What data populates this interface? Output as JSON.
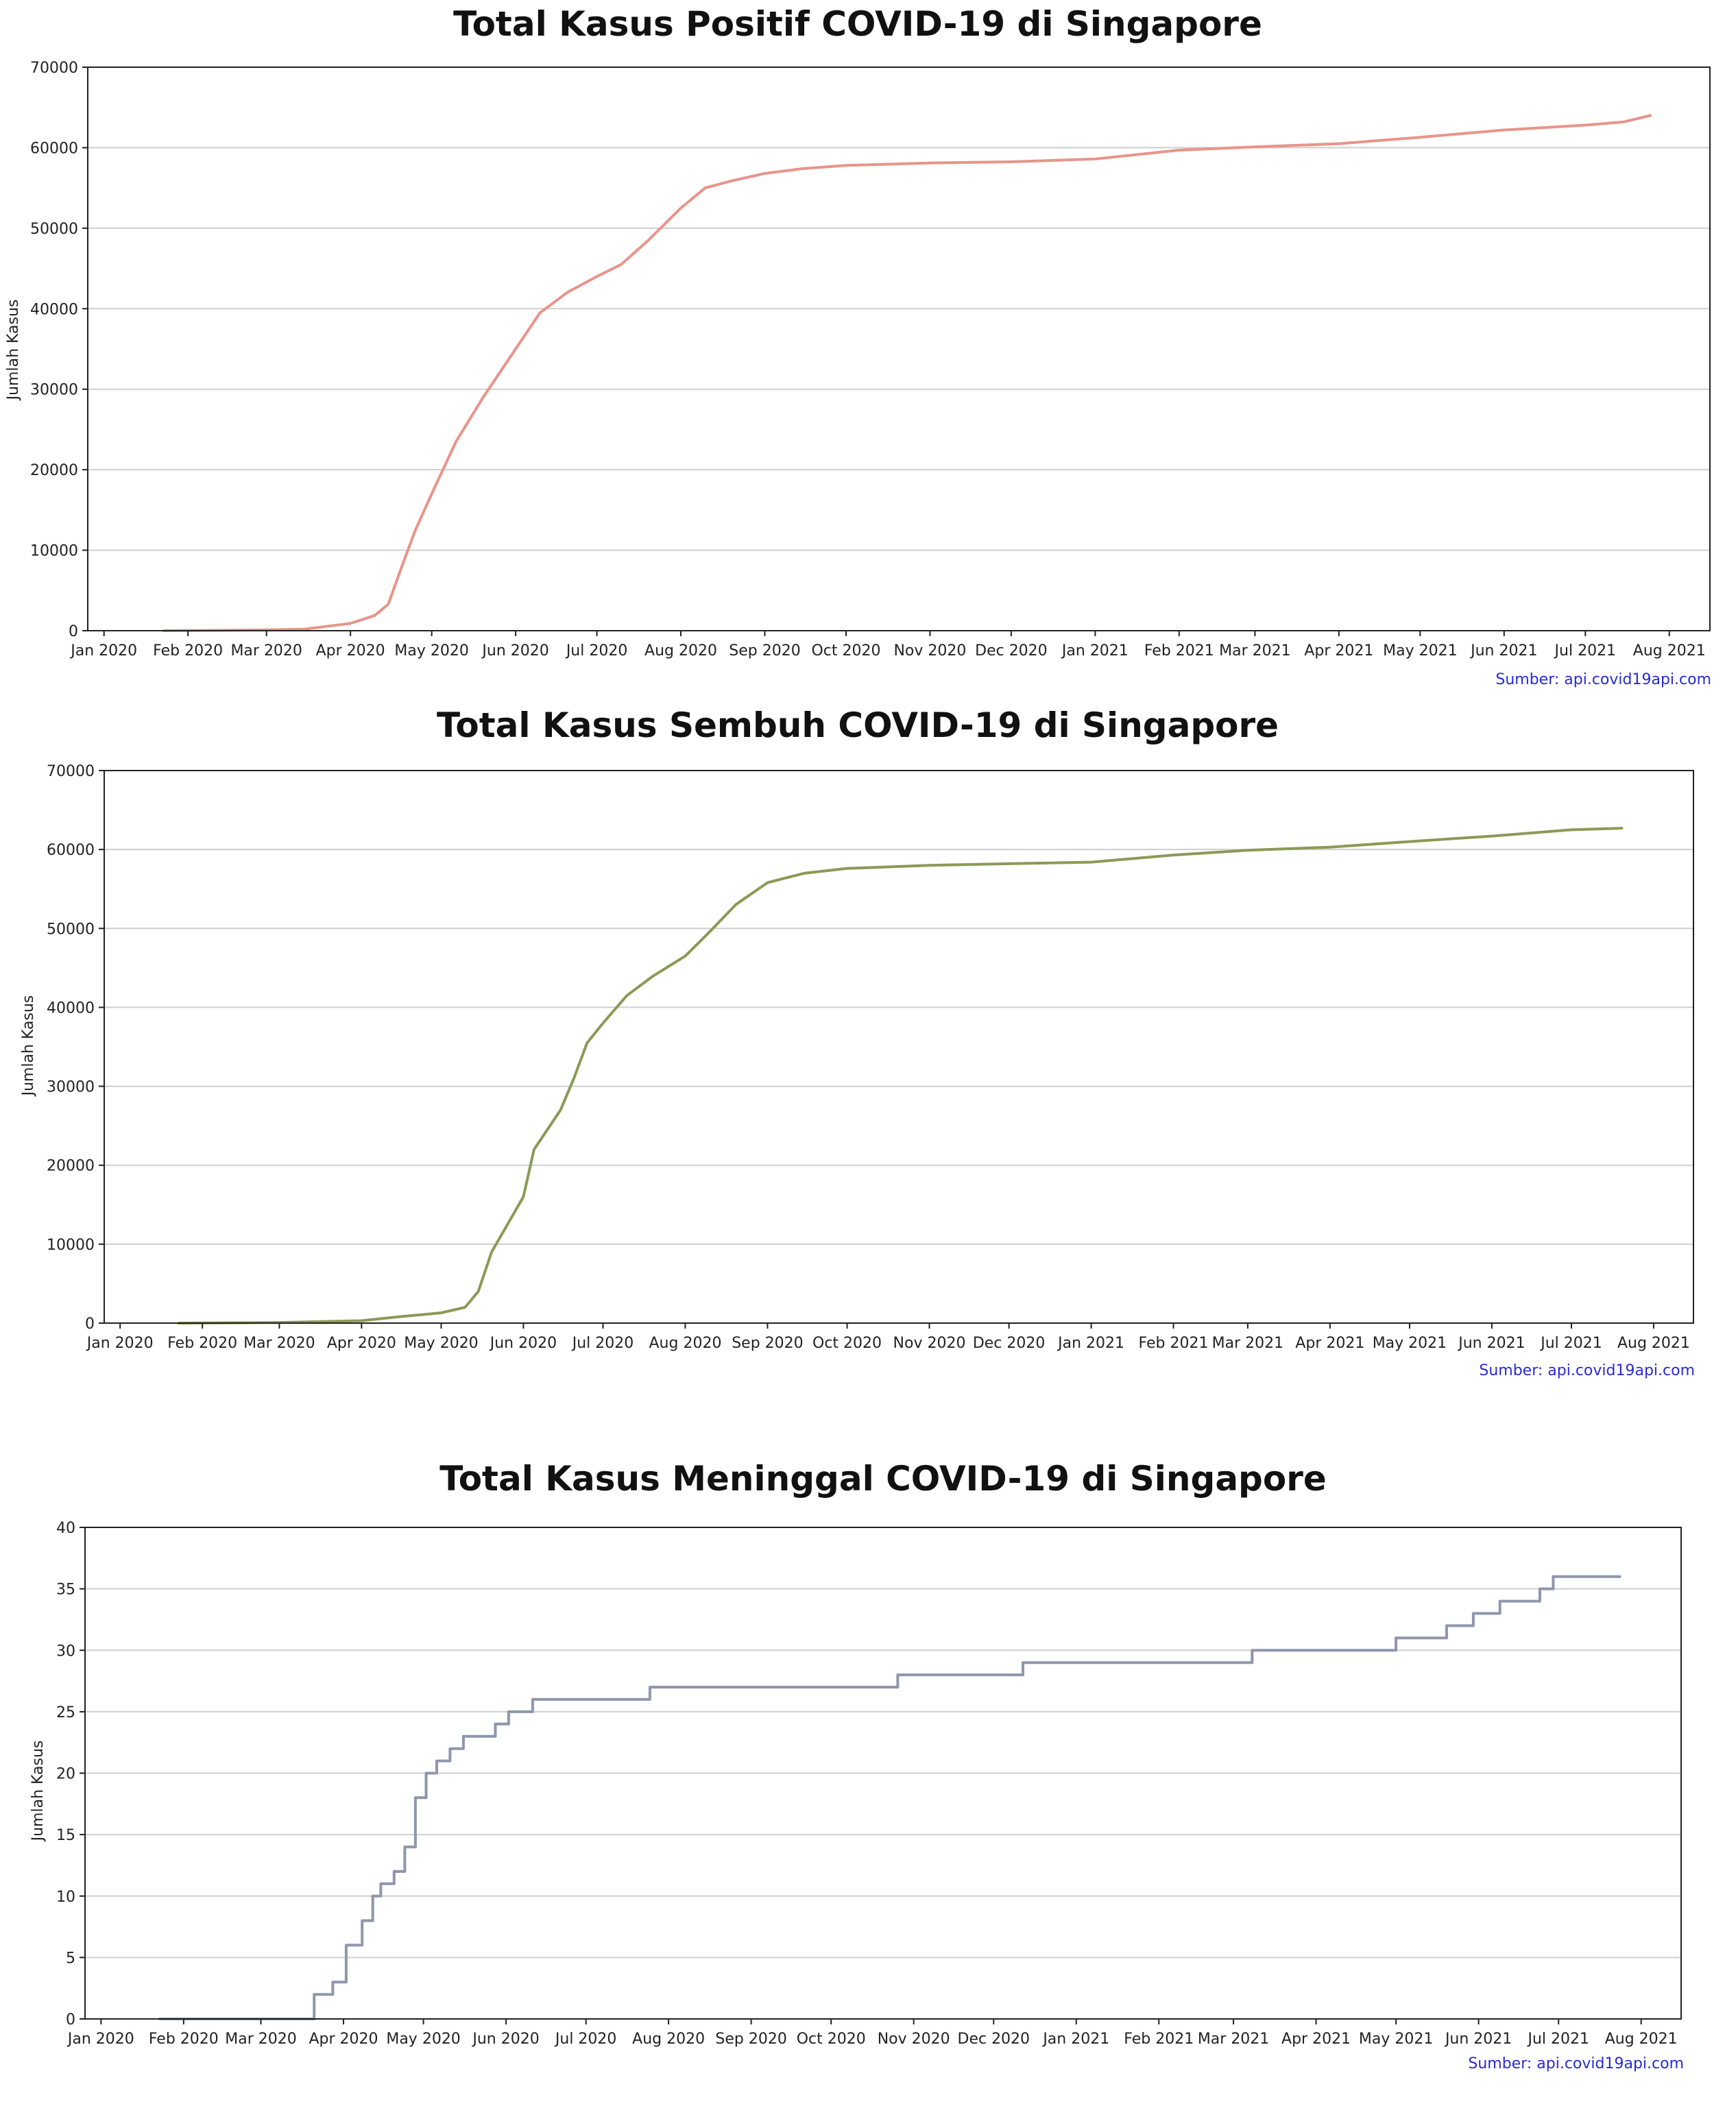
{
  "chart_data": [
    {
      "type": "line",
      "title": "Total Kasus Positif COVID-19 di Singapore",
      "ylabel": "Jumlah Kasus",
      "xlabel": "",
      "source": "Sumber: api.covid19api.com",
      "grid": "horizontal",
      "line_color": "#e8948a",
      "step": false,
      "ylim": [
        0,
        70000
      ],
      "xlim": [
        "2019-12-26",
        "2021-08-16"
      ],
      "yticks": [
        {
          "value": 0,
          "label": "0"
        },
        {
          "value": 10000,
          "label": "10000"
        },
        {
          "value": 20000,
          "label": "20000"
        },
        {
          "value": 30000,
          "label": "30000"
        },
        {
          "value": 40000,
          "label": "40000"
        },
        {
          "value": 50000,
          "label": "50000"
        },
        {
          "value": 60000,
          "label": "60000"
        },
        {
          "value": 70000,
          "label": "70000"
        }
      ],
      "xticks": [
        {
          "value": "2020-01-01",
          "label": "Jan 2020"
        },
        {
          "value": "2020-02-01",
          "label": "Feb 2020"
        },
        {
          "value": "2020-03-01",
          "label": "Mar 2020"
        },
        {
          "value": "2020-04-01",
          "label": "Apr 2020"
        },
        {
          "value": "2020-05-01",
          "label": "May 2020"
        },
        {
          "value": "2020-06-01",
          "label": "Jun 2020"
        },
        {
          "value": "2020-07-01",
          "label": "Jul 2020"
        },
        {
          "value": "2020-08-01",
          "label": "Aug 2020"
        },
        {
          "value": "2020-09-01",
          "label": "Sep 2020"
        },
        {
          "value": "2020-10-01",
          "label": "Oct 2020"
        },
        {
          "value": "2020-11-01",
          "label": "Nov 2020"
        },
        {
          "value": "2020-12-01",
          "label": "Dec 2020"
        },
        {
          "value": "2021-01-01",
          "label": "Jan 2021"
        },
        {
          "value": "2021-02-01",
          "label": "Feb 2021"
        },
        {
          "value": "2021-03-01",
          "label": "Mar 2021"
        },
        {
          "value": "2021-04-01",
          "label": "Apr 2021"
        },
        {
          "value": "2021-05-01",
          "label": "May 2021"
        },
        {
          "value": "2021-06-01",
          "label": "Jun 2021"
        },
        {
          "value": "2021-07-01",
          "label": "Jul 2021"
        },
        {
          "value": "2021-08-01",
          "label": "Aug 2021"
        }
      ],
      "series": [
        {
          "name": "",
          "points": [
            [
              "2020-01-23",
              0
            ],
            [
              "2020-03-01",
              100
            ],
            [
              "2020-03-15",
              200
            ],
            [
              "2020-04-01",
              900
            ],
            [
              "2020-04-10",
              1900
            ],
            [
              "2020-04-15",
              3300
            ],
            [
              "2020-04-20",
              8000
            ],
            [
              "2020-04-25",
              12500
            ],
            [
              "2020-05-01",
              17000
            ],
            [
              "2020-05-10",
              23500
            ],
            [
              "2020-05-20",
              29000
            ],
            [
              "2020-06-01",
              35000
            ],
            [
              "2020-06-10",
              39500
            ],
            [
              "2020-06-20",
              42000
            ],
            [
              "2020-07-01",
              44000
            ],
            [
              "2020-07-10",
              45500
            ],
            [
              "2020-07-20",
              48500
            ],
            [
              "2020-08-01",
              52500
            ],
            [
              "2020-08-10",
              55000
            ],
            [
              "2020-08-20",
              55900
            ],
            [
              "2020-09-01",
              56800
            ],
            [
              "2020-09-15",
              57400
            ],
            [
              "2020-10-01",
              57800
            ],
            [
              "2020-11-01",
              58100
            ],
            [
              "2020-12-01",
              58250
            ],
            [
              "2021-01-01",
              58600
            ],
            [
              "2021-02-01",
              59700
            ],
            [
              "2021-03-01",
              60100
            ],
            [
              "2021-04-01",
              60500
            ],
            [
              "2021-05-01",
              61300
            ],
            [
              "2021-06-01",
              62200
            ],
            [
              "2021-07-01",
              62800
            ],
            [
              "2021-07-15",
              63200
            ],
            [
              "2021-07-25",
              64000
            ]
          ]
        }
      ]
    },
    {
      "type": "line",
      "title": "Total Kasus Sembuh COVID-19 di Singapore",
      "ylabel": "Jumlah Kasus",
      "xlabel": "",
      "source": "Sumber: api.covid19api.com",
      "grid": "horizontal",
      "line_color": "#8a9a55",
      "step": false,
      "ylim": [
        0,
        70000
      ],
      "xlim": [
        "2019-12-26",
        "2021-08-16"
      ],
      "yticks": [
        {
          "value": 0,
          "label": "0"
        },
        {
          "value": 10000,
          "label": "10000"
        },
        {
          "value": 20000,
          "label": "20000"
        },
        {
          "value": 30000,
          "label": "30000"
        },
        {
          "value": 40000,
          "label": "40000"
        },
        {
          "value": 50000,
          "label": "50000"
        },
        {
          "value": 60000,
          "label": "60000"
        },
        {
          "value": 70000,
          "label": "70000"
        }
      ],
      "xticks": [
        {
          "value": "2020-01-01",
          "label": "Jan 2020"
        },
        {
          "value": "2020-02-01",
          "label": "Feb 2020"
        },
        {
          "value": "2020-03-01",
          "label": "Mar 2020"
        },
        {
          "value": "2020-04-01",
          "label": "Apr 2020"
        },
        {
          "value": "2020-05-01",
          "label": "May 2020"
        },
        {
          "value": "2020-06-01",
          "label": "Jun 2020"
        },
        {
          "value": "2020-07-01",
          "label": "Jul 2020"
        },
        {
          "value": "2020-08-01",
          "label": "Aug 2020"
        },
        {
          "value": "2020-09-01",
          "label": "Sep 2020"
        },
        {
          "value": "2020-10-01",
          "label": "Oct 2020"
        },
        {
          "value": "2020-11-01",
          "label": "Nov 2020"
        },
        {
          "value": "2020-12-01",
          "label": "Dec 2020"
        },
        {
          "value": "2021-01-01",
          "label": "Jan 2021"
        },
        {
          "value": "2021-02-01",
          "label": "Feb 2021"
        },
        {
          "value": "2021-03-01",
          "label": "Mar 2021"
        },
        {
          "value": "2021-04-01",
          "label": "Apr 2021"
        },
        {
          "value": "2021-05-01",
          "label": "May 2021"
        },
        {
          "value": "2021-06-01",
          "label": "Jun 2021"
        },
        {
          "value": "2021-07-01",
          "label": "Jul 2021"
        },
        {
          "value": "2021-08-01",
          "label": "Aug 2021"
        }
      ],
      "series": [
        {
          "name": "",
          "points": [
            [
              "2020-01-23",
              0
            ],
            [
              "2020-03-01",
              80
            ],
            [
              "2020-04-01",
              300
            ],
            [
              "2020-04-15",
              800
            ],
            [
              "2020-05-01",
              1300
            ],
            [
              "2020-05-10",
              2000
            ],
            [
              "2020-05-15",
              4000
            ],
            [
              "2020-05-20",
              9000
            ],
            [
              "2020-06-01",
              16000
            ],
            [
              "2020-06-05",
              22000
            ],
            [
              "2020-06-10",
              24500
            ],
            [
              "2020-06-15",
              27000
            ],
            [
              "2020-06-20",
              31000
            ],
            [
              "2020-06-25",
              35500
            ],
            [
              "2020-07-01",
              38000
            ],
            [
              "2020-07-10",
              41500
            ],
            [
              "2020-07-20",
              44000
            ],
            [
              "2020-08-01",
              46500
            ],
            [
              "2020-08-10",
              49500
            ],
            [
              "2020-08-20",
              53000
            ],
            [
              "2020-09-01",
              55800
            ],
            [
              "2020-09-15",
              57000
            ],
            [
              "2020-10-01",
              57600
            ],
            [
              "2020-11-01",
              58000
            ],
            [
              "2020-12-01",
              58200
            ],
            [
              "2021-01-01",
              58400
            ],
            [
              "2021-02-01",
              59300
            ],
            [
              "2021-03-01",
              59900
            ],
            [
              "2021-04-01",
              60300
            ],
            [
              "2021-05-01",
              61000
            ],
            [
              "2021-06-01",
              61700
            ],
            [
              "2021-07-01",
              62500
            ],
            [
              "2021-07-20",
              62700
            ]
          ]
        }
      ]
    },
    {
      "type": "line",
      "title": "Total Kasus Meninggal COVID-19 di Singapore",
      "ylabel": "Jumlah Kasus",
      "xlabel": "",
      "source": "Sumber: api.covid19api.com",
      "grid": "horizontal",
      "line_color": "#8f96ac",
      "step": true,
      "ylim": [
        0,
        40
      ],
      "xlim": [
        "2019-12-26",
        "2021-08-16"
      ],
      "yticks": [
        {
          "value": 0,
          "label": "0"
        },
        {
          "value": 5,
          "label": "5"
        },
        {
          "value": 10,
          "label": "10"
        },
        {
          "value": 15,
          "label": "15"
        },
        {
          "value": 20,
          "label": "20"
        },
        {
          "value": 25,
          "label": "25"
        },
        {
          "value": 30,
          "label": "30"
        },
        {
          "value": 35,
          "label": "35"
        },
        {
          "value": 40,
          "label": "40"
        }
      ],
      "xticks": [
        {
          "value": "2020-01-01",
          "label": "Jan 2020"
        },
        {
          "value": "2020-02-01",
          "label": "Feb 2020"
        },
        {
          "value": "2020-03-01",
          "label": "Mar 2020"
        },
        {
          "value": "2020-04-01",
          "label": "Apr 2020"
        },
        {
          "value": "2020-05-01",
          "label": "May 2020"
        },
        {
          "value": "2020-06-01",
          "label": "Jun 2020"
        },
        {
          "value": "2020-07-01",
          "label": "Jul 2020"
        },
        {
          "value": "2020-08-01",
          "label": "Aug 2020"
        },
        {
          "value": "2020-09-01",
          "label": "Sep 2020"
        },
        {
          "value": "2020-10-01",
          "label": "Oct 2020"
        },
        {
          "value": "2020-11-01",
          "label": "Nov 2020"
        },
        {
          "value": "2020-12-01",
          "label": "Dec 2020"
        },
        {
          "value": "2021-01-01",
          "label": "Jan 2021"
        },
        {
          "value": "2021-02-01",
          "label": "Feb 2021"
        },
        {
          "value": "2021-03-01",
          "label": "Mar 2021"
        },
        {
          "value": "2021-04-01",
          "label": "Apr 2021"
        },
        {
          "value": "2021-05-01",
          "label": "May 2021"
        },
        {
          "value": "2021-06-01",
          "label": "Jun 2021"
        },
        {
          "value": "2021-07-01",
          "label": "Jul 2021"
        },
        {
          "value": "2021-08-01",
          "label": "Aug 2021"
        }
      ],
      "series": [
        {
          "name": "",
          "points": [
            [
              "2020-01-23",
              0
            ],
            [
              "2020-03-21",
              2
            ],
            [
              "2020-03-28",
              3
            ],
            [
              "2020-04-02",
              6
            ],
            [
              "2020-04-08",
              8
            ],
            [
              "2020-04-12",
              10
            ],
            [
              "2020-04-15",
              11
            ],
            [
              "2020-04-20",
              12
            ],
            [
              "2020-04-24",
              14
            ],
            [
              "2020-04-28",
              18
            ],
            [
              "2020-05-02",
              20
            ],
            [
              "2020-05-06",
              21
            ],
            [
              "2020-05-11",
              22
            ],
            [
              "2020-05-16",
              23
            ],
            [
              "2020-05-28",
              24
            ],
            [
              "2020-06-02",
              25
            ],
            [
              "2020-06-11",
              26
            ],
            [
              "2020-07-25",
              27
            ],
            [
              "2020-10-26",
              28
            ],
            [
              "2020-12-12",
              29
            ],
            [
              "2021-03-08",
              30
            ],
            [
              "2021-05-01",
              31
            ],
            [
              "2021-05-20",
              32
            ],
            [
              "2021-05-30",
              33
            ],
            [
              "2021-06-09",
              34
            ],
            [
              "2021-06-24",
              35
            ],
            [
              "2021-06-29",
              36
            ],
            [
              "2021-07-24",
              36
            ]
          ]
        }
      ]
    }
  ]
}
